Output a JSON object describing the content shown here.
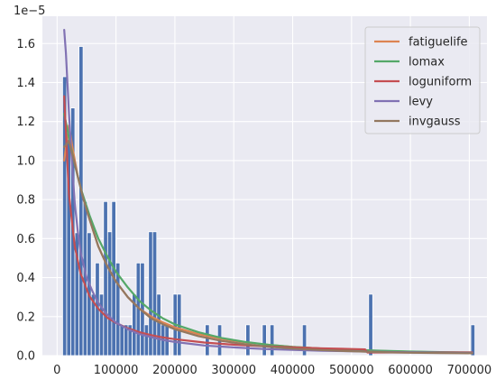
{
  "chart_data": {
    "type": "histogram-with-fitted-density-lines",
    "title": "",
    "xlabel": "",
    "ylabel": "",
    "y_scale_label": "1e−5",
    "xlim": [
      -25000,
      730000
    ],
    "ylim": [
      0,
      1.74
    ],
    "x_ticks": [
      0,
      100000,
      200000,
      300000,
      400000,
      500000,
      600000,
      700000
    ],
    "x_tick_labels": [
      "0",
      "100000",
      "200000",
      "300000",
      "400000",
      "500000",
      "600000",
      "700000"
    ],
    "y_ticks": [
      0,
      0.2,
      0.4,
      0.6,
      0.8,
      1.0,
      1.2,
      1.4,
      1.6
    ],
    "y_tick_labels": [
      "0.0",
      "0.2",
      "0.4",
      "0.6",
      "0.8",
      "1.0",
      "1.2",
      "1.4",
      "1.6"
    ],
    "grid": true,
    "legend_position": "top-right",
    "bar_color": "#4c72b0",
    "histogram": {
      "bin_width": 6950,
      "bars": [
        {
          "x": 12800,
          "value": 1.43
        },
        {
          "x": 19800,
          "value": 1.11
        },
        {
          "x": 26700,
          "value": 1.27
        },
        {
          "x": 33700,
          "value": 0.63
        },
        {
          "x": 40600,
          "value": 1.585
        },
        {
          "x": 47600,
          "value": 0.79
        },
        {
          "x": 54500,
          "value": 0.63
        },
        {
          "x": 61500,
          "value": 0.315
        },
        {
          "x": 68400,
          "value": 0.475
        },
        {
          "x": 75400,
          "value": 0.315
        },
        {
          "x": 82300,
          "value": 0.79
        },
        {
          "x": 89300,
          "value": 0.635
        },
        {
          "x": 96200,
          "value": 0.79
        },
        {
          "x": 103200,
          "value": 0.475
        },
        {
          "x": 110100,
          "value": 0.158
        },
        {
          "x": 117100,
          "value": 0.158
        },
        {
          "x": 124000,
          "value": 0.158
        },
        {
          "x": 131000,
          "value": 0.315
        },
        {
          "x": 137900,
          "value": 0.475
        },
        {
          "x": 144900,
          "value": 0.475
        },
        {
          "x": 151800,
          "value": 0.158
        },
        {
          "x": 158800,
          "value": 0.635
        },
        {
          "x": 165700,
          "value": 0.635
        },
        {
          "x": 172700,
          "value": 0.315
        },
        {
          "x": 179600,
          "value": 0.158
        },
        {
          "x": 186600,
          "value": 0.158
        },
        {
          "x": 200500,
          "value": 0.315
        },
        {
          "x": 207400,
          "value": 0.315
        },
        {
          "x": 255000,
          "value": 0.158
        },
        {
          "x": 276000,
          "value": 0.158
        },
        {
          "x": 324000,
          "value": 0.158
        },
        {
          "x": 352000,
          "value": 0.158
        },
        {
          "x": 365000,
          "value": 0.158
        },
        {
          "x": 420000,
          "value": 0.158
        },
        {
          "x": 532500,
          "value": 0.315
        },
        {
          "x": 706000,
          "value": 0.158
        }
      ]
    },
    "series": [
      {
        "name": "fatiguelife",
        "color": "#dd8452",
        "points": [
          [
            12000,
            1.0
          ],
          [
            20000,
            1.18
          ],
          [
            27000,
            1.05
          ],
          [
            35000,
            0.92
          ],
          [
            45000,
            0.8
          ],
          [
            55000,
            0.7
          ],
          [
            70000,
            0.56
          ],
          [
            85000,
            0.46
          ],
          [
            100000,
            0.38
          ],
          [
            120000,
            0.3
          ],
          [
            140000,
            0.24
          ],
          [
            160000,
            0.2
          ],
          [
            180000,
            0.17
          ],
          [
            200000,
            0.145
          ],
          [
            240000,
            0.11
          ],
          [
            280000,
            0.085
          ],
          [
            320000,
            0.068
          ],
          [
            360000,
            0.055
          ],
          [
            400000,
            0.045
          ],
          [
            450000,
            0.036
          ],
          [
            500000,
            0.029
          ],
          [
            550000,
            0.024
          ],
          [
            600000,
            0.02
          ],
          [
            650000,
            0.017
          ],
          [
            705000,
            0.015
          ]
        ]
      },
      {
        "name": "lomax",
        "color": "#55a868",
        "points": [
          [
            12000,
            1.24
          ],
          [
            20000,
            1.12
          ],
          [
            30000,
            0.98
          ],
          [
            40000,
            0.86
          ],
          [
            55000,
            0.72
          ],
          [
            70000,
            0.6
          ],
          [
            85000,
            0.51
          ],
          [
            100000,
            0.43
          ],
          [
            120000,
            0.35
          ],
          [
            140000,
            0.28
          ],
          [
            160000,
            0.23
          ],
          [
            180000,
            0.19
          ],
          [
            200000,
            0.16
          ],
          [
            240000,
            0.12
          ],
          [
            280000,
            0.09
          ],
          [
            320000,
            0.07
          ],
          [
            360000,
            0.055
          ],
          [
            400000,
            0.045
          ],
          [
            450000,
            0.036
          ],
          [
            500000,
            0.03
          ],
          [
            550000,
            0.025
          ],
          [
            600000,
            0.021
          ],
          [
            650000,
            0.018
          ],
          [
            705000,
            0.016
          ]
        ]
      },
      {
        "name": "loguniform",
        "color": "#c44e52",
        "points": [
          [
            12000,
            1.33
          ],
          [
            20000,
            0.83
          ],
          [
            30000,
            0.56
          ],
          [
            40000,
            0.42
          ],
          [
            55000,
            0.305
          ],
          [
            70000,
            0.24
          ],
          [
            85000,
            0.195
          ],
          [
            100000,
            0.168
          ],
          [
            120000,
            0.14
          ],
          [
            140000,
            0.12
          ],
          [
            160000,
            0.105
          ],
          [
            180000,
            0.093
          ],
          [
            200000,
            0.084
          ],
          [
            250000,
            0.067
          ],
          [
            300000,
            0.056
          ],
          [
            350000,
            0.048
          ],
          [
            400000,
            0.042
          ],
          [
            450000,
            0.037
          ],
          [
            500000,
            0.034
          ],
          [
            523000,
            0.032
          ],
          [
            527000,
            0.016
          ],
          [
            600000,
            0.016
          ],
          [
            650000,
            0.016
          ],
          [
            705000,
            0.016
          ]
        ]
      },
      {
        "name": "levy",
        "color": "#8172b3",
        "points": [
          [
            12000,
            1.67
          ],
          [
            15000,
            1.55
          ],
          [
            20000,
            1.25
          ],
          [
            25000,
            1.0
          ],
          [
            30000,
            0.78
          ],
          [
            35000,
            0.64
          ],
          [
            40000,
            0.53
          ],
          [
            50000,
            0.4
          ],
          [
            60000,
            0.33
          ],
          [
            70000,
            0.27
          ],
          [
            85000,
            0.21
          ],
          [
            100000,
            0.17
          ],
          [
            120000,
            0.135
          ],
          [
            140000,
            0.11
          ],
          [
            160000,
            0.095
          ],
          [
            180000,
            0.08
          ],
          [
            200000,
            0.07
          ],
          [
            250000,
            0.052
          ],
          [
            300000,
            0.042
          ],
          [
            350000,
            0.034
          ],
          [
            400000,
            0.029
          ],
          [
            450000,
            0.025
          ],
          [
            500000,
            0.022
          ],
          [
            550000,
            0.019
          ],
          [
            600000,
            0.017
          ],
          [
            650000,
            0.015
          ],
          [
            705000,
            0.014
          ]
        ]
      },
      {
        "name": "invgauss",
        "color": "#937860",
        "points": [
          [
            12000,
            1.07
          ],
          [
            20000,
            1.1
          ],
          [
            27000,
            1.02
          ],
          [
            35000,
            0.92
          ],
          [
            45000,
            0.8
          ],
          [
            55000,
            0.7
          ],
          [
            70000,
            0.56
          ],
          [
            85000,
            0.46
          ],
          [
            100000,
            0.38
          ],
          [
            120000,
            0.3
          ],
          [
            140000,
            0.24
          ],
          [
            160000,
            0.19
          ],
          [
            180000,
            0.16
          ],
          [
            200000,
            0.135
          ],
          [
            240000,
            0.1
          ],
          [
            280000,
            0.075
          ],
          [
            320000,
            0.058
          ],
          [
            360000,
            0.045
          ],
          [
            400000,
            0.036
          ],
          [
            450000,
            0.028
          ],
          [
            500000,
            0.022
          ],
          [
            550000,
            0.018
          ],
          [
            600000,
            0.015
          ],
          [
            650000,
            0.013
          ],
          [
            705000,
            0.012
          ]
        ]
      }
    ]
  }
}
